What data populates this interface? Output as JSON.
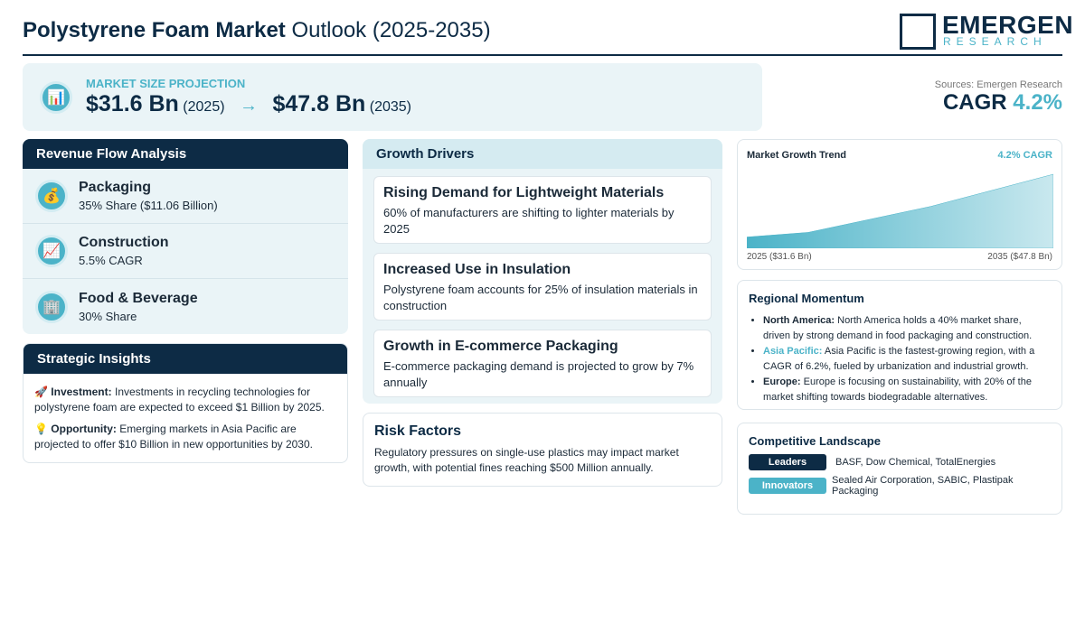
{
  "header": {
    "title_bold": "Polystyrene Foam Market",
    "title_rest": "Outlook (2025-2035)",
    "logo_top": "EMERGEN",
    "logo_bottom": "RESEARCH"
  },
  "projection": {
    "label": "MARKET SIZE PROJECTION",
    "start_value": "$31.6 Bn",
    "start_year": "(2025)",
    "arrow": "→",
    "end_value": "$47.8 Bn",
    "end_year": "(2035)"
  },
  "summary": {
    "sources": "Sources: Emergen Research",
    "cagr_label": "CAGR",
    "cagr_value": "4.2%"
  },
  "revenue_flow": {
    "title": "Revenue Flow Analysis",
    "items": [
      {
        "name": "Packaging",
        "detail": "35% Share ($11.06 Billion)"
      },
      {
        "name": "Construction",
        "detail": "5.5% CAGR"
      },
      {
        "name": "Food & Beverage",
        "detail": "30% Share"
      }
    ]
  },
  "strategic_insights": {
    "title": "Strategic Insights",
    "items": [
      {
        "label": "Investment:",
        "text": "Investments in recycling technologies for polystyrene foam are expected to exceed $1 Billion by 2025."
      },
      {
        "label": "Opportunity:",
        "text": "Emerging markets in Asia Pacific are projected to offer $10 Billion in new opportunities by 2030."
      }
    ]
  },
  "growth_drivers": {
    "title": "Growth Drivers",
    "items": [
      {
        "title": "Rising Demand for Lightweight Materials",
        "text": "60% of manufacturers are shifting to lighter materials by 2025"
      },
      {
        "title": "Increased Use in Insulation",
        "text": "Polystyrene foam accounts for 25% of insulation materials in construction"
      },
      {
        "title": "Growth in E-commerce Packaging",
        "text": "E-commerce packaging demand is projected to grow by 7% annually"
      }
    ]
  },
  "risk_factors": {
    "title": "Risk Factors",
    "text": "Regulatory pressures on single-use plastics may impact market growth, with potential fines reaching $500 Million annually."
  },
  "trend": {
    "title": "Market Growth Trend",
    "badge": "4.2% CAGR",
    "start_label": "2025 ($31.6 Bn)",
    "end_label": "2035 ($47.8 Bn)",
    "x": [
      2025,
      2027,
      2031,
      2035
    ],
    "values": [
      31.6,
      32.8,
      39.5,
      47.8
    ],
    "xlim": [
      2025,
      2035
    ],
    "ylim": [
      28.7,
      47.8
    ],
    "color": "#4bb3c8"
  },
  "regional": {
    "title": "Regional Momentum",
    "items": [
      {
        "region": "North America:",
        "text": "North America holds a 40% market share, driven by strong demand in food packaging and construction."
      },
      {
        "region": "Asia Pacific:",
        "text": "Asia Pacific is the fastest-growing region, with a CAGR of 6.2%, fueled by urbanization and industrial growth."
      },
      {
        "region": "Europe:",
        "text": "Europe is focusing on sustainability, with 20% of the market shifting towards biodegradable alternatives."
      }
    ]
  },
  "competitive": {
    "title": "Competitive Landscape",
    "rows": [
      {
        "tag": "Leaders",
        "companies": "BASF, Dow Chemical, TotalEnergies"
      },
      {
        "tag": "Innovators",
        "companies": "Sealed Air Corporation, SABIC, Plastipak Packaging"
      }
    ]
  }
}
